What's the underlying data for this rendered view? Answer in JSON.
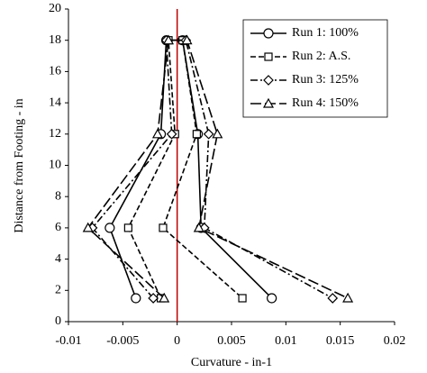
{
  "chart_data": {
    "type": "line",
    "x_label": "Curvature - in-1",
    "y_label": "Distance from Footing - in",
    "xlim": [
      -0.01,
      0.02
    ],
    "xticks": [
      -0.01,
      -0.005,
      0,
      0.005,
      0.01,
      0.015,
      0.02
    ],
    "ylim": [
      0,
      20
    ],
    "yticks": [
      0,
      2,
      4,
      6,
      8,
      10,
      12,
      14,
      16,
      18,
      20
    ],
    "grid": false,
    "legend": "upper right",
    "reference_line": {
      "x": 0,
      "color": "#c00000"
    },
    "series": [
      {
        "name": "Run 1: 100%",
        "color": "#000000",
        "dash": "solid",
        "marker": "circle",
        "x": [
          -0.0038,
          -0.0062,
          -0.0015,
          -0.001,
          0.0005,
          0.0019,
          0.0022,
          0.0087
        ],
        "values": [
          1.5,
          6,
          12,
          18,
          18,
          12,
          6,
          1.5
        ]
      },
      {
        "name": "Run 2: A.S.",
        "color": "#000000",
        "dash": "dashed",
        "marker": "square",
        "x": [
          -0.0015,
          -0.0045,
          -0.0002,
          -0.0008,
          0.0005,
          0.0018,
          -0.0013,
          0.006
        ],
        "values": [
          1.5,
          6,
          12,
          18,
          18,
          12,
          6,
          1.5
        ]
      },
      {
        "name": "Run 3: 125%",
        "color": "#000000",
        "dash": "dashdot",
        "marker": "diamond",
        "x": [
          -0.0022,
          -0.0078,
          -0.0005,
          -0.001,
          0.0008,
          0.0029,
          0.0025,
          0.0143
        ],
        "values": [
          1.5,
          6,
          12,
          18,
          18,
          12,
          6,
          1.5
        ]
      },
      {
        "name": "Run 4: 150%",
        "color": "#000000",
        "dash": "longdash",
        "marker": "triangle",
        "x": [
          -0.0012,
          -0.0082,
          -0.0018,
          -0.0008,
          0.0009,
          0.0037,
          0.002,
          0.0157
        ],
        "values": [
          1.5,
          6,
          12,
          18,
          18,
          12,
          6,
          1.5
        ]
      }
    ]
  }
}
